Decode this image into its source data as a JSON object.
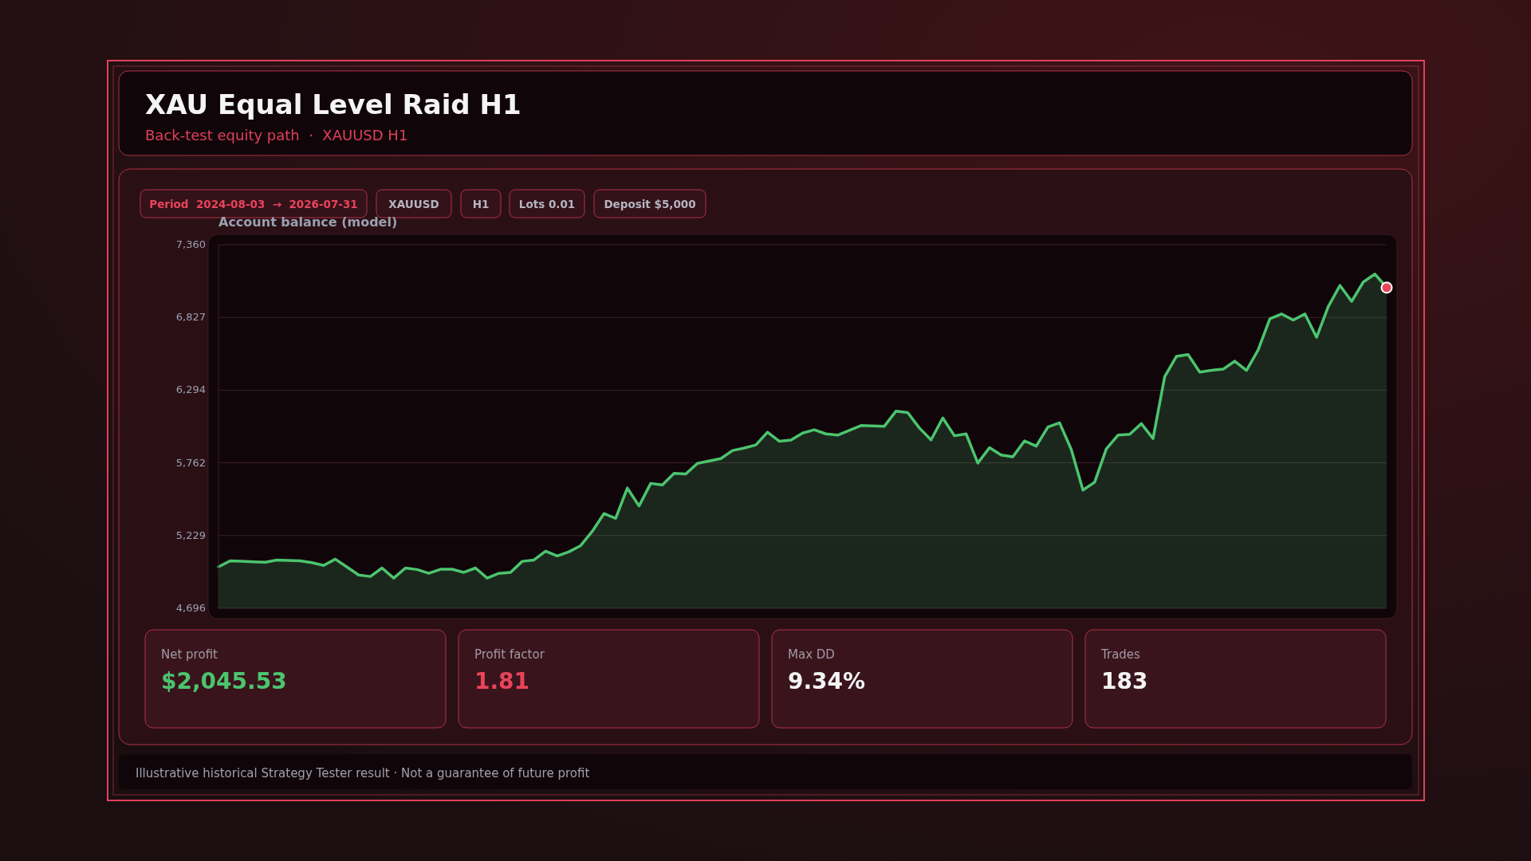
{
  "chart_data": {
    "type": "area",
    "title": "XAU Equal Level Raid H1",
    "subtitle": "Back-test equity path  ·  XAUUSD H1",
    "ylabel": "Account balance (model)",
    "categories": [
      null,
      null,
      null,
      null,
      null,
      null,
      null,
      null,
      null,
      null,
      null,
      null,
      null,
      null,
      null,
      null,
      null,
      null,
      null,
      null,
      null,
      null,
      null,
      null,
      null,
      null,
      null,
      null,
      null,
      null,
      null,
      null,
      null,
      null,
      null,
      null,
      null,
      null,
      null,
      null,
      null,
      null,
      null,
      null,
      null,
      null,
      null,
      null,
      null,
      null,
      null,
      null,
      null,
      null,
      null,
      null,
      null,
      null,
      null,
      null,
      null,
      null,
      null,
      null,
      null,
      null,
      null,
      null,
      null,
      null,
      null,
      null,
      null,
      null,
      null,
      null,
      null,
      null,
      null,
      null,
      null,
      null,
      null,
      null,
      null,
      null,
      null,
      null,
      null,
      null,
      null,
      null,
      null,
      null,
      null,
      null,
      null,
      null,
      null,
      null,
      null
    ],
    "series": [
      {
        "color": "#4cc46e",
        "values": [
          5000,
          5044,
          5040,
          5036,
          5033,
          5049,
          5046,
          5044,
          5030,
          5010,
          5056,
          4998,
          4940,
          4929,
          4991,
          4917,
          4991,
          4980,
          4952,
          4982,
          4982,
          4959,
          4991,
          4917,
          4952,
          4959,
          5040,
          5050,
          5114,
          5079,
          5110,
          5155,
          5260,
          5390,
          5355,
          5577,
          5446,
          5611,
          5600,
          5685,
          5680,
          5758,
          5775,
          5793,
          5852,
          5870,
          5893,
          5986,
          5920,
          5928,
          5980,
          6004,
          5974,
          5965,
          6000,
          6035,
          6033,
          6030,
          6141,
          6130,
          6017,
          5930,
          6091,
          5960,
          5974,
          5760,
          5873,
          5819,
          5806,
          5923,
          5884,
          6024,
          6055,
          5860,
          5562,
          5620,
          5864,
          5965,
          5971,
          6049,
          5940,
          6394,
          6542,
          6555,
          6427,
          6440,
          6448,
          6507,
          6439,
          6590,
          6818,
          6853,
          6808,
          6853,
          6682,
          6906,
          7062,
          6945,
          7087,
          7145,
          7046
        ]
      },
      {
        "type": "scatter",
        "color": "#e8445a",
        "marker": "circle",
        "values": [
          null,
          null,
          null,
          null,
          null,
          null,
          null,
          null,
          null,
          null,
          null,
          null,
          null,
          null,
          null,
          null,
          null,
          null,
          null,
          null,
          null,
          null,
          null,
          null,
          null,
          null,
          null,
          null,
          null,
          null,
          null,
          null,
          null,
          null,
          null,
          null,
          null,
          null,
          null,
          null,
          null,
          null,
          null,
          null,
          null,
          null,
          null,
          null,
          null,
          null,
          null,
          null,
          null,
          null,
          null,
          null,
          null,
          null,
          null,
          null,
          null,
          null,
          null,
          null,
          null,
          null,
          null,
          null,
          null,
          null,
          null,
          null,
          null,
          null,
          null,
          null,
          null,
          null,
          null,
          null,
          null,
          null,
          null,
          null,
          null,
          null,
          null,
          null,
          null,
          null,
          null,
          null,
          null,
          null,
          null,
          null,
          null,
          null,
          null,
          null,
          7046
        ]
      }
    ],
    "ylim": [
      4696,
      7360
    ],
    "yticks": [
      {
        "value": 4696,
        "label": "4,696"
      },
      {
        "value": 5229,
        "label": "5,229"
      },
      {
        "value": 5762,
        "label": "5,762"
      },
      {
        "value": 6294,
        "label": "6,294"
      },
      {
        "value": 6827,
        "label": "6,827"
      },
      {
        "value": 7360,
        "label": "7,360"
      }
    ],
    "grid": "y",
    "tick_labels": "y",
    "annotations": [
      "Period  2024-08-03  →  2026-07-31",
      "XAUUSD",
      "H1",
      "Lots 0.01",
      "Deposit $5,000",
      "Net profit",
      "$2,045.53",
      "Profit factor",
      "1.81",
      "Max DD",
      "9.34%",
      "Trades",
      "183",
      "Illustrative historical Strategy Tester result · Not a guarantee of future profit"
    ]
  }
}
